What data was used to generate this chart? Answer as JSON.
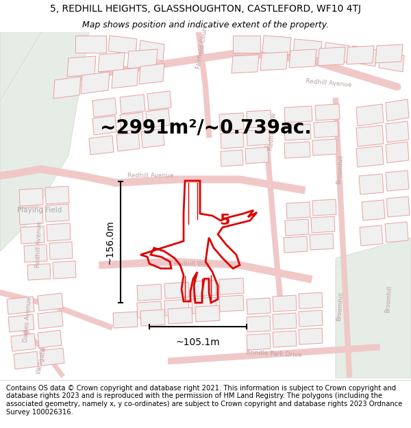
{
  "title_line1": "5, REDHILL HEIGHTS, GLASSHOUGHTON, CASTLEFORD, WF10 4TJ",
  "title_line2": "Map shows position and indicative extent of the property.",
  "area_text": "~2991m²/~0.739ac.",
  "number_text": "5",
  "dim_horizontal": "~105.1m",
  "dim_vertical": "~156.0m",
  "footer_text": "Contains OS data © Crown copyright and database right 2021. This information is subject to Crown copyright and database rights 2023 and is reproduced with the permission of HM Land Registry. The polygons (including the associated geometry, namely x, y co-ordinates) are subject to Crown copyright and database rights 2023 Ordnance Survey 100026316.",
  "bg_color": "#ffffff",
  "building_fill": "#f0f0f0",
  "building_edge": "#e8a0a0",
  "road_fill": "#ffffff",
  "road_edge": "#e8a0a0",
  "green_color": "#e8f0e8",
  "highlight_color": "#dd0000",
  "title_fontsize": 10,
  "subtitle_fontsize": 9,
  "area_fontsize": 20,
  "dim_fontsize": 10,
  "number_fontsize": 16,
  "footer_fontsize": 7.2,
  "label_color": "#c0a0a0",
  "label_fontsize": 6.5
}
